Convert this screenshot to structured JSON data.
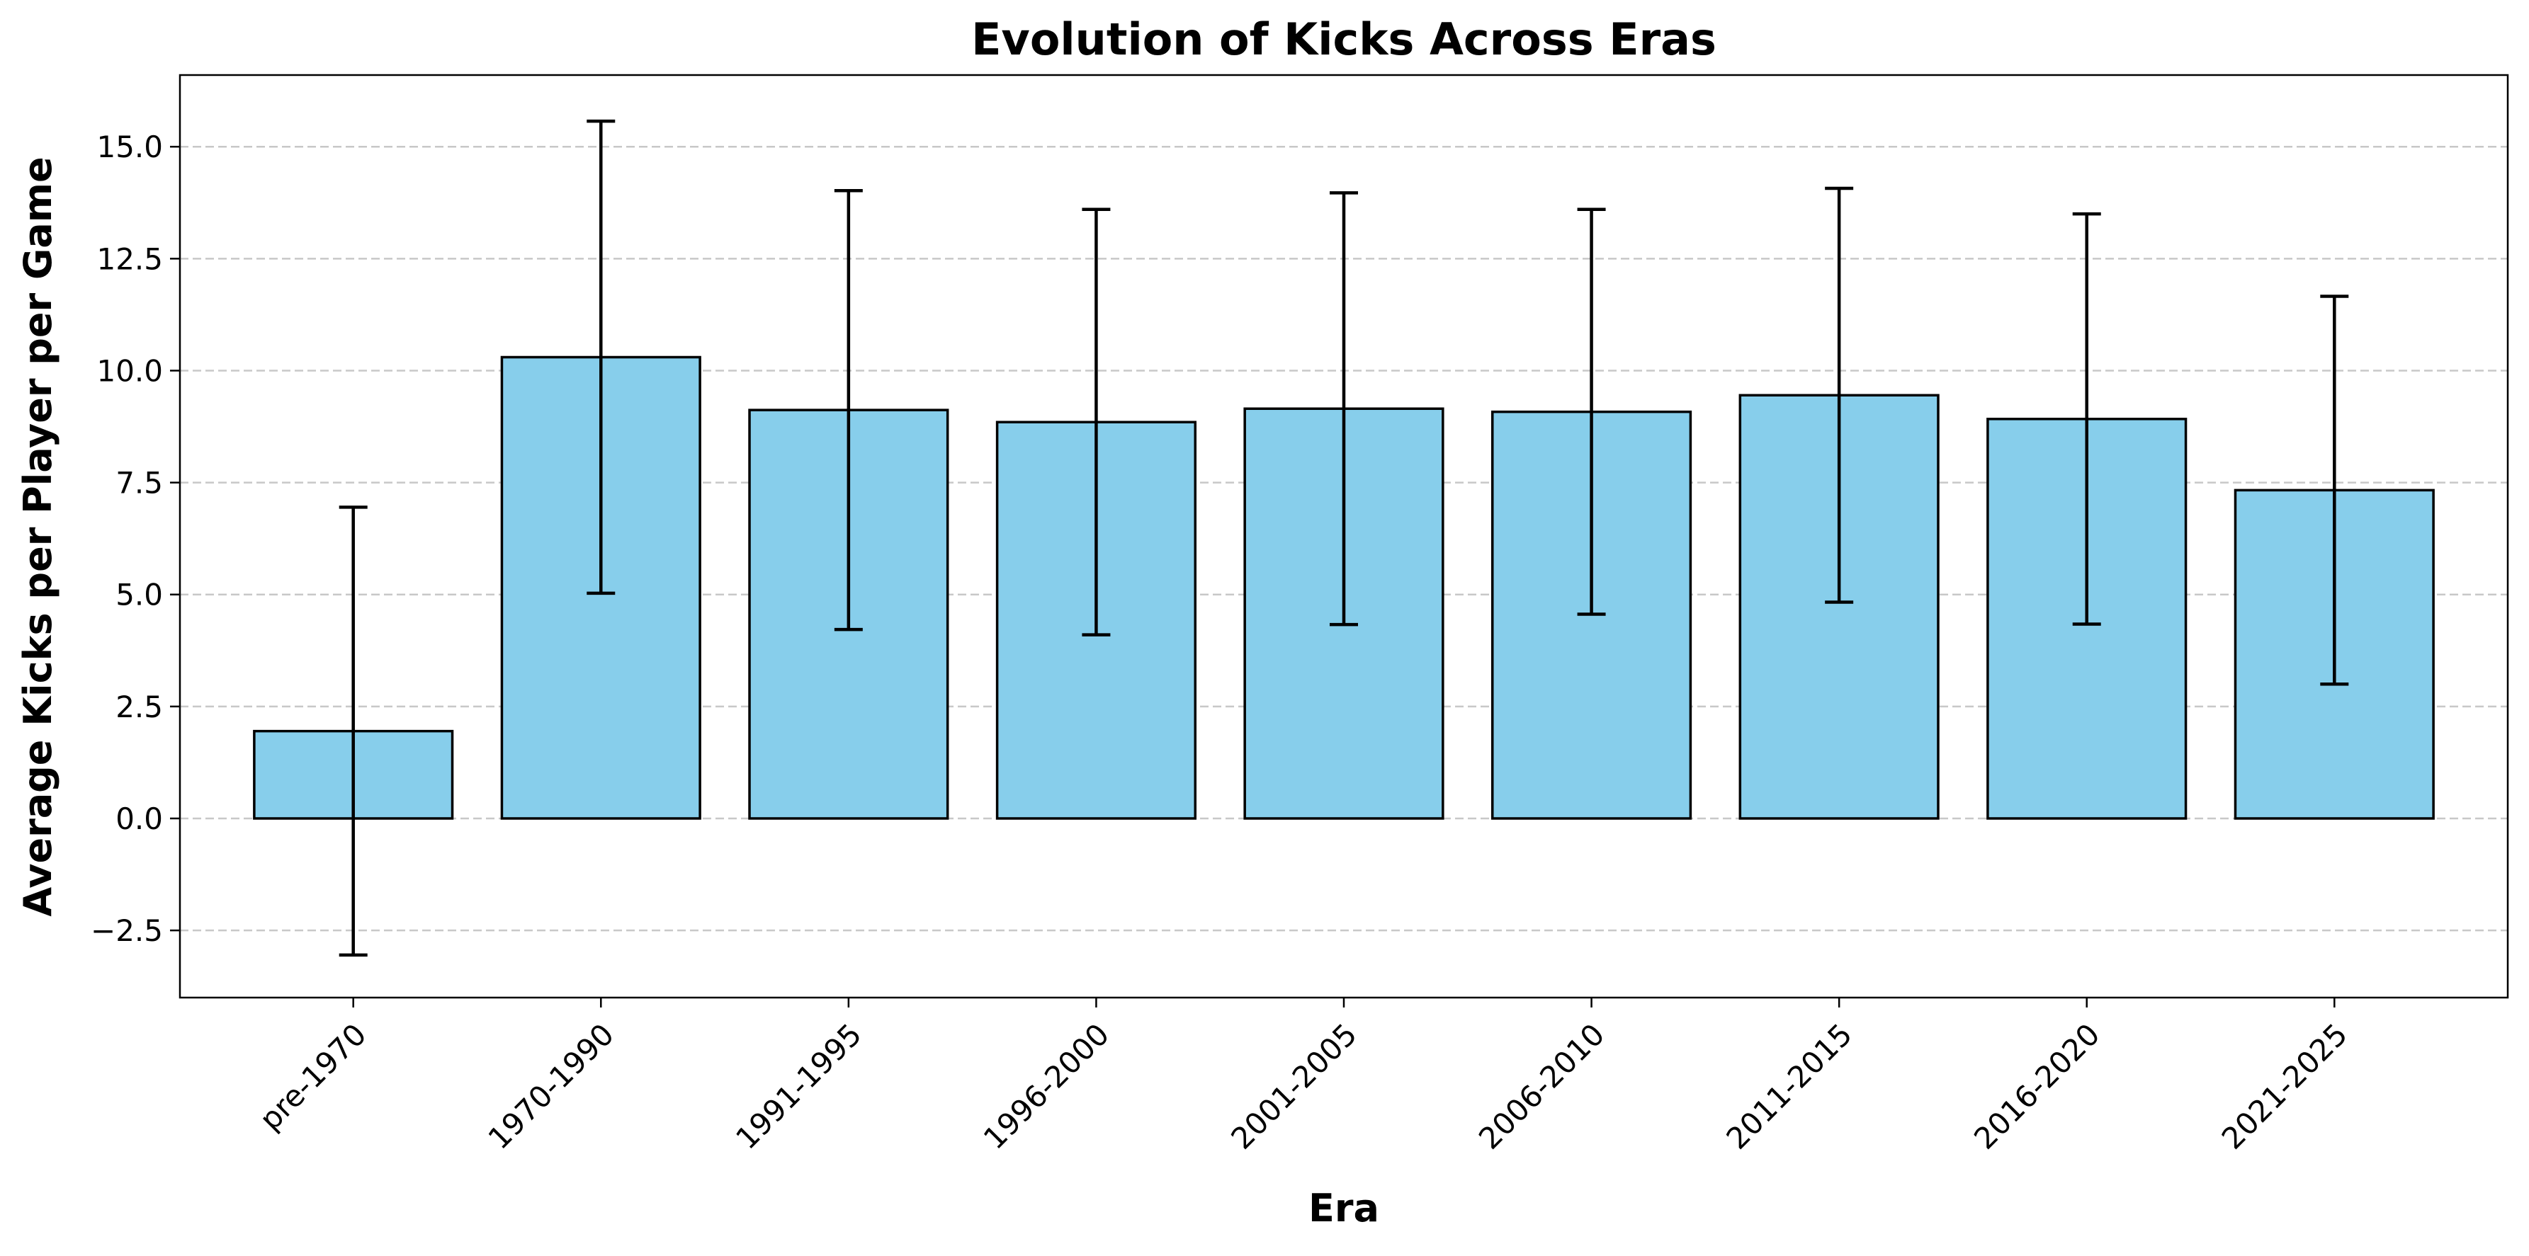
{
  "chart_data": {
    "type": "bar",
    "title": "Evolution of Kicks Across Eras",
    "xlabel": "Era",
    "ylabel": "Average Kicks per Player per Game",
    "categories": [
      "pre-1970",
      "1970-1990",
      "1991-1995",
      "1996-2000",
      "2001-2005",
      "2006-2010",
      "2011-2015",
      "2016-2020",
      "2021-2025"
    ],
    "values": [
      1.95,
      10.3,
      9.12,
      8.85,
      9.15,
      9.08,
      9.45,
      8.92,
      7.33
    ],
    "error": [
      5.0,
      5.27,
      4.9,
      4.75,
      4.82,
      4.52,
      4.62,
      4.58,
      4.33
    ],
    "ylim": [
      -4.0,
      16.6
    ],
    "yticks": [
      -2.5,
      0.0,
      2.5,
      5.0,
      7.5,
      10.0,
      12.5,
      15.0
    ],
    "ytick_labels": [
      "−2.5",
      "0.0",
      "2.5",
      "5.0",
      "7.5",
      "10.0",
      "12.5",
      "15.0"
    ],
    "grid": "y-dashed",
    "legend": "none",
    "colors": {
      "bar_fill": "#87ceeb",
      "bar_edge": "#000000",
      "grid": "#c8c8c8",
      "errorbar": "#000000"
    }
  }
}
